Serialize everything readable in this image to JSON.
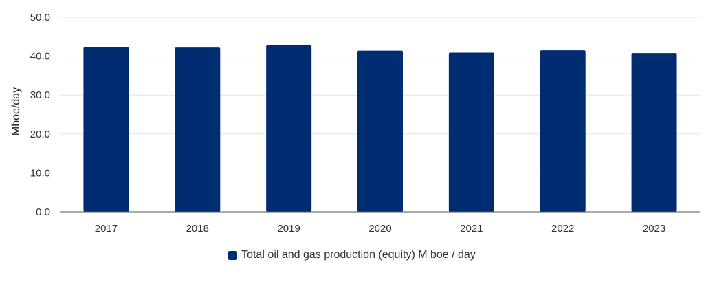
{
  "chart_data": {
    "type": "bar",
    "categories": [
      "2017",
      "2018",
      "2019",
      "2020",
      "2021",
      "2022",
      "2023"
    ],
    "series": [
      {
        "name": "Total oil and gas production (equity) M boe / day",
        "values": [
          42.3,
          42.2,
          42.8,
          41.4,
          40.9,
          41.5,
          40.8
        ],
        "color": "#002d72"
      }
    ],
    "ylabel": "Mboe/day",
    "ylim": [
      0,
      50
    ],
    "yticks": [
      "0.0",
      "10.0",
      "20.0",
      "30.0",
      "40.0",
      "50.0"
    ],
    "grid": true,
    "legend_position": "bottom"
  }
}
